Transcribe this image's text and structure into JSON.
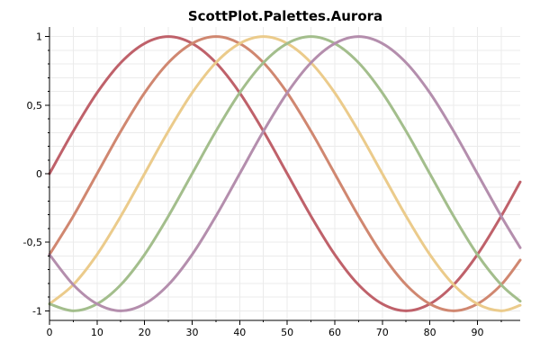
{
  "chart_data": {
    "type": "line",
    "title": "ScottPlot.Palettes.Aurora",
    "xlabel": "",
    "ylabel": "",
    "xlim": [
      0,
      99
    ],
    "ylim": [
      -1.07,
      1.07
    ],
    "grid": true,
    "x_ticks": [
      0,
      10,
      20,
      30,
      40,
      50,
      60,
      70,
      80,
      90
    ],
    "x_tick_labels": [
      "0",
      "10",
      "20",
      "30",
      "40",
      "50",
      "60",
      "70",
      "80",
      "90"
    ],
    "y_ticks": [
      -1,
      -0.5,
      0,
      0.5,
      1
    ],
    "y_tick_labels": [
      "-1",
      "-0,5",
      "0",
      "0,5",
      "1"
    ],
    "x": [
      0,
      5,
      10,
      15,
      20,
      25,
      30,
      35,
      40,
      45,
      50,
      55,
      60,
      65,
      70,
      75,
      80,
      85,
      90,
      95,
      99
    ],
    "series": [
      {
        "color": "#bf616a",
        "values": [
          0,
          0.31,
          0.59,
          0.81,
          0.95,
          1,
          0.95,
          0.81,
          0.59,
          0.31,
          0,
          -0.31,
          -0.59,
          -0.81,
          -0.95,
          -1,
          -0.95,
          -0.81,
          -0.59,
          -0.31,
          -0.06
        ]
      },
      {
        "color": "#d08770",
        "values": [
          -0.59,
          -0.31,
          0,
          0.31,
          0.59,
          0.81,
          0.95,
          1,
          0.95,
          0.81,
          0.59,
          0.31,
          0,
          -0.31,
          -0.59,
          -0.81,
          -0.95,
          -1,
          -0.95,
          -0.81,
          -0.63
        ]
      },
      {
        "color": "#ebcb8b",
        "values": [
          -0.95,
          -0.81,
          -0.59,
          -0.31,
          0,
          0.31,
          0.59,
          0.81,
          0.95,
          1,
          0.95,
          0.81,
          0.59,
          0.31,
          0,
          -0.31,
          -0.59,
          -0.81,
          -0.95,
          -1,
          -0.96
        ]
      },
      {
        "color": "#a3be8c",
        "values": [
          -0.95,
          -1,
          -0.95,
          -0.81,
          -0.59,
          -0.31,
          0,
          0.31,
          0.59,
          0.81,
          0.95,
          1,
          0.95,
          0.81,
          0.59,
          0.31,
          0,
          -0.31,
          -0.59,
          -0.81,
          -0.93
        ]
      },
      {
        "color": "#b48ead",
        "values": [
          -0.59,
          -0.81,
          -0.95,
          -1,
          -0.95,
          -0.81,
          -0.59,
          -0.31,
          0,
          0.31,
          0.59,
          0.81,
          0.95,
          1,
          0.95,
          0.81,
          0.59,
          0.31,
          0,
          -0.31,
          -0.54
        ]
      }
    ]
  }
}
